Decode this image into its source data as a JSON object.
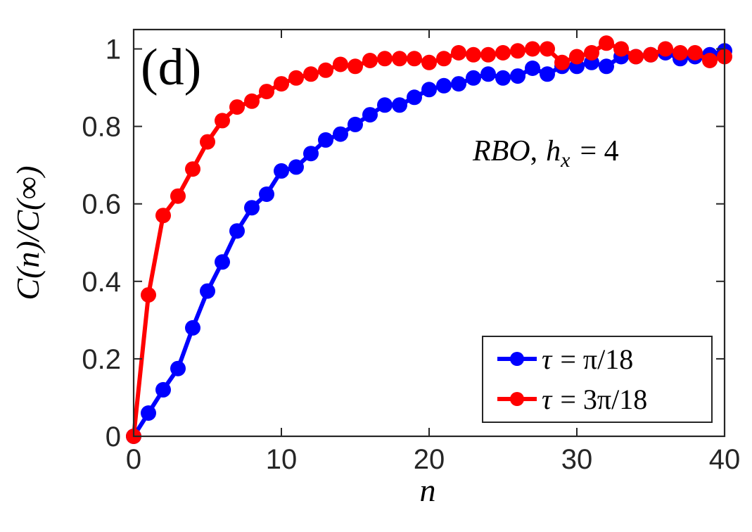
{
  "chart_data": {
    "type": "line",
    "panel_label": "(d)",
    "annotation": {
      "math": "RBO",
      "sep": ",",
      "var": "h",
      "sub": "x",
      "rel": "= 4"
    },
    "xlabel": "n",
    "ylabel": {
      "l1": "C(",
      "l2": "n",
      "l3": ")/C(",
      "l4": "∞",
      "l5": ")"
    },
    "xlim": [
      0,
      40
    ],
    "ylim": [
      0,
      1.05
    ],
    "xticks": [
      0,
      10,
      20,
      30,
      40
    ],
    "xtick_labels": [
      "0",
      "10",
      "20",
      "30",
      "40"
    ],
    "yticks": [
      0,
      0.2,
      0.4,
      0.6,
      0.8,
      1
    ],
    "ytick_labels": [
      "0",
      "0.2",
      "0.4",
      "0.6",
      "0.8",
      "1"
    ],
    "grid": false,
    "legend_position": "bottom-right",
    "x": [
      0,
      1,
      2,
      3,
      4,
      5,
      6,
      7,
      8,
      9,
      10,
      11,
      12,
      13,
      14,
      15,
      16,
      17,
      18,
      19,
      20,
      21,
      22,
      23,
      24,
      25,
      26,
      27,
      28,
      29,
      30,
      31,
      32,
      33,
      34,
      35,
      36,
      37,
      38,
      39,
      40
    ],
    "series": [
      {
        "name": "τ = π/18",
        "legend": {
          "var": "τ",
          "rel": "= π/18"
        },
        "color": "#0000ff",
        "values": [
          0,
          0.06,
          0.12,
          0.175,
          0.28,
          0.375,
          0.45,
          0.53,
          0.59,
          0.625,
          0.685,
          0.695,
          0.73,
          0.765,
          0.78,
          0.805,
          0.83,
          0.855,
          0.855,
          0.875,
          0.895,
          0.905,
          0.91,
          0.925,
          0.935,
          0.925,
          0.93,
          0.95,
          0.935,
          0.955,
          0.955,
          0.965,
          0.955,
          0.98,
          0.98,
          0.985,
          0.99,
          0.975,
          0.98,
          0.985,
          0.995
        ]
      },
      {
        "name": "τ = 3π/18",
        "legend": {
          "var": "τ",
          "rel": "= 3π/18"
        },
        "color": "#ff0000",
        "values": [
          0,
          0.365,
          0.57,
          0.62,
          0.69,
          0.76,
          0.815,
          0.85,
          0.865,
          0.89,
          0.91,
          0.925,
          0.935,
          0.945,
          0.96,
          0.955,
          0.97,
          0.975,
          0.975,
          0.975,
          0.965,
          0.975,
          0.99,
          0.985,
          0.985,
          0.99,
          0.995,
          1.0,
          1.0,
          0.965,
          0.98,
          0.99,
          1.015,
          1.0,
          0.98,
          0.985,
          1.0,
          0.99,
          0.99,
          0.97,
          0.98
        ]
      }
    ]
  }
}
